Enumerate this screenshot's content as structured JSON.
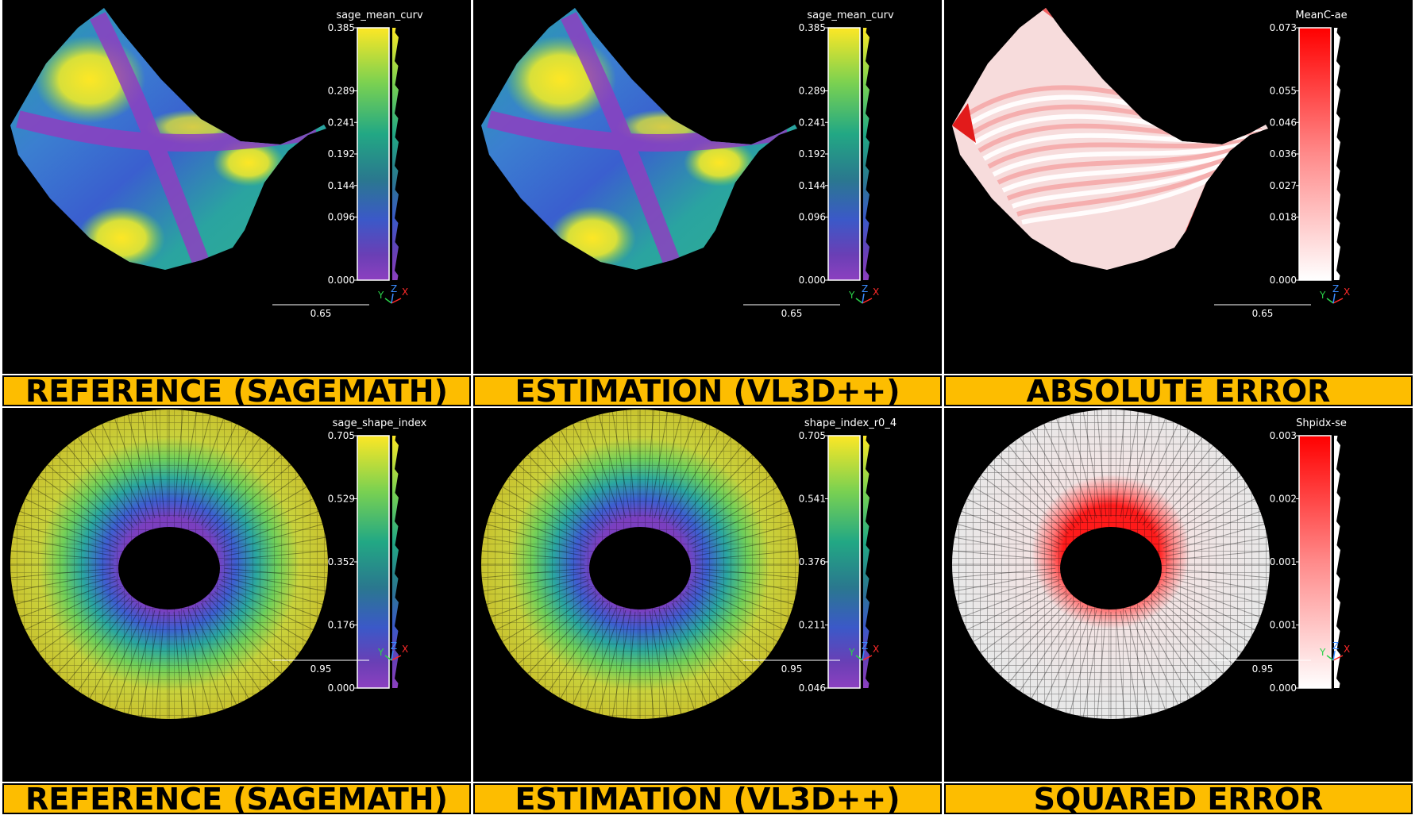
{
  "panels": [
    {
      "id": "ref-mean",
      "banner": "REFERENCE (SAGEMATH)",
      "scalar_name": "sage_mean_curv",
      "colormap": "viridis",
      "ticks": [
        "0.385",
        "0.289",
        "0.241",
        "0.192",
        "0.144",
        "0.096",
        "0.000"
      ],
      "scale_label": "0.65",
      "shape": "saddle"
    },
    {
      "id": "est-mean",
      "banner": "ESTIMATION (VL3D++)",
      "scalar_name": "sage_mean_curv",
      "colormap": "viridis",
      "ticks": [
        "0.385",
        "0.289",
        "0.241",
        "0.192",
        "0.144",
        "0.096",
        "0.000"
      ],
      "scale_label": "0.65",
      "shape": "saddle"
    },
    {
      "id": "abs-err",
      "banner": "ABSOLUTE ERROR",
      "scalar_name": "MeanC-ae",
      "colormap": "white-red",
      "ticks": [
        "0.073",
        "0.055",
        "0.046",
        "0.036",
        "0.027",
        "0.018",
        "0.000"
      ],
      "scale_label": "0.65",
      "shape": "saddle"
    },
    {
      "id": "ref-shape",
      "banner": "REFERENCE (SAGEMATH)",
      "scalar_name": "sage_shape_index",
      "colormap": "viridis",
      "ticks": [
        "0.705",
        "0.529",
        "0.352",
        "0.176",
        "0.000"
      ],
      "scale_label": "0.95",
      "shape": "torus"
    },
    {
      "id": "est-shape",
      "banner": "ESTIMATION (VL3D++)",
      "scalar_name": "shape_index_r0_4",
      "colormap": "viridis",
      "ticks": [
        "0.705",
        "0.541",
        "0.376",
        "0.211",
        "0.046"
      ],
      "scale_label": "0.95",
      "shape": "torus"
    },
    {
      "id": "sq-err",
      "banner": "SQUARED ERROR",
      "scalar_name": "Shpidx-se",
      "colormap": "white-red",
      "ticks": [
        "0.003",
        "0.002",
        "0.001",
        "0.001",
        "0.000"
      ],
      "scale_label": "0.95",
      "shape": "torus"
    }
  ],
  "axes": {
    "x": "X",
    "y": "Y",
    "z": "Z"
  },
  "colors": {
    "banner": "#fdbd00",
    "x_axis": "#ff2a2a",
    "y_axis": "#2bd44a",
    "z_axis": "#3a8cff"
  }
}
